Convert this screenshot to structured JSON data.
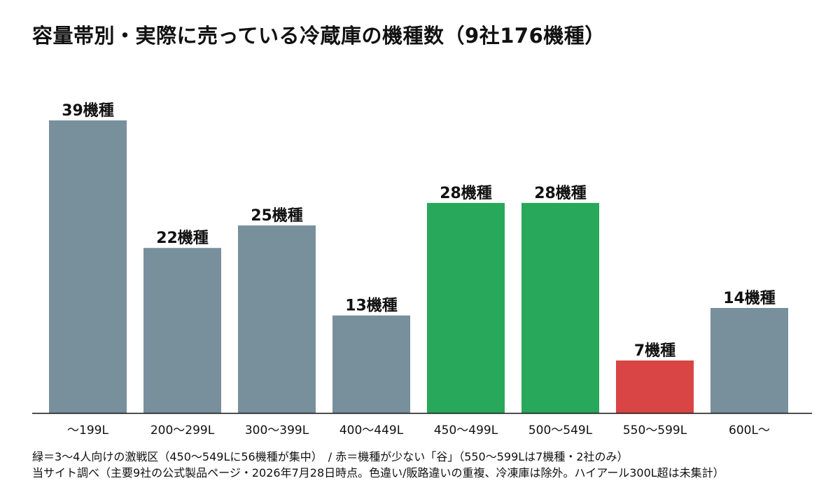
{
  "title": "容量帯別・実際に売っている冷蔵庫の機種数（9社176機種）",
  "notes": [
    "緑＝3～4人向けの激戦区（450～549Lに56機種が集中）　/ 赤＝機種が少ない「谷」（550～599Lは7機種・2社のみ）",
    "当サイト調べ（主要9社の公式製品ページ・2026年7月28日時点。色違い/販路違いの重複、冷凍庫は除外。ハイアール300L超は未集計）"
  ],
  "colors": {
    "default": "#78909c",
    "highlight": "#27a85a",
    "low": "#d94544",
    "axis": "#111111"
  },
  "chart_data": {
    "type": "bar",
    "title": "容量帯別・実際に売っている冷蔵庫の機種数（9社176機種）",
    "categories": [
      "～199L",
      "200～299L",
      "300～399L",
      "400～449L",
      "450～499L",
      "500～549L",
      "550～599L",
      "600L～"
    ],
    "values": [
      39,
      22,
      25,
      13,
      28,
      28,
      7,
      14
    ],
    "value_labels": [
      "39機種",
      "22機種",
      "25機種",
      "13機種",
      "28機種",
      "28機種",
      "7機種",
      "14機種"
    ],
    "bar_colors": [
      "default",
      "default",
      "default",
      "default",
      "highlight",
      "highlight",
      "low",
      "default"
    ],
    "ylim": [
      0,
      39
    ],
    "grid": false,
    "legend": "none"
  }
}
